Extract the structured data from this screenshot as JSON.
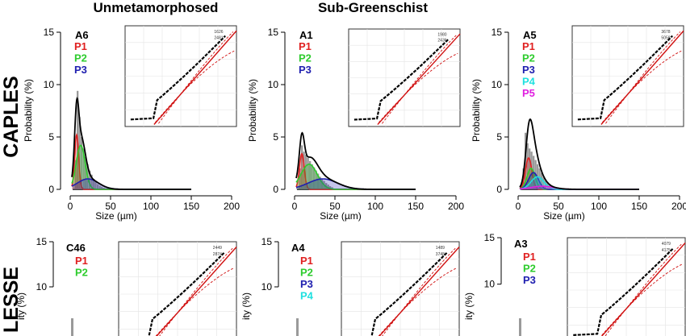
{
  "headers": {
    "left": "Unmetamorphosed",
    "right": "Sub-Greenschist",
    "row1": "CAPLES",
    "row2": "LESSE"
  },
  "colors": {
    "hist": "#9a9a9a",
    "P1": "#e02020",
    "P2": "#2ecc2e",
    "P3": "#2020b0",
    "P4": "#20e0e0",
    "P5": "#e020e0",
    "total": "#000000",
    "fit": "#d01010"
  },
  "chart_data": [
    {
      "type": "bar",
      "name": "A6",
      "sample": "A6",
      "xlabel": "Size (µm)",
      "ylabel": "Probability (%)",
      "xlim": [
        0,
        200
      ],
      "ylim": [
        0,
        15
      ],
      "xticks": [
        "0",
        "50",
        "100",
        "150",
        "200"
      ],
      "yticks": [
        "0",
        "5",
        "10",
        "15"
      ],
      "legend": [
        "P1",
        "P2",
        "P3"
      ],
      "inset_labels": [
        "1626",
        "2481"
      ],
      "components": [
        {
          "name": "P1",
          "mu": 8,
          "sigma": 2.5,
          "peak": 5.2
        },
        {
          "name": "P2",
          "mu": 13,
          "sigma": 5.5,
          "peak": 4.2
        },
        {
          "name": "P3",
          "mu": 22,
          "sigma": 13,
          "peak": 1.0
        }
      ],
      "histogram": [
        0.05,
        2.8,
        9.4,
        6.9,
        5.0,
        3.9,
        3.1,
        2.4,
        1.8,
        1.4,
        1.0,
        0.7,
        0.5,
        0.35,
        0.25,
        0.15,
        0.1
      ]
    },
    {
      "type": "bar",
      "name": "A1",
      "sample": "A1",
      "xlabel": "Size (µm)",
      "ylabel": "Probability (%)",
      "xlim": [
        0,
        200
      ],
      "ylim": [
        0,
        15
      ],
      "xticks": [
        "0",
        "50",
        "100",
        "150",
        "200"
      ],
      "yticks": [
        "0",
        "5",
        "10",
        "15"
      ],
      "legend": [
        "P1",
        "P2",
        "P3"
      ],
      "inset_labels": [
        "1980",
        "2436"
      ],
      "components": [
        {
          "name": "P1",
          "mu": 9,
          "sigma": 3,
          "peak": 3.4
        },
        {
          "name": "P2",
          "mu": 18,
          "sigma": 10,
          "peak": 2.4
        },
        {
          "name": "P3",
          "mu": 35,
          "sigma": 18,
          "peak": 1.0
        }
      ],
      "histogram": [
        0.05,
        2.0,
        4.2,
        3.6,
        3.3,
        3.0,
        2.7,
        2.4,
        2.1,
        1.8,
        1.5,
        1.2,
        1.0,
        0.8,
        0.6,
        0.45,
        0.3,
        0.2
      ]
    },
    {
      "type": "bar",
      "name": "A5",
      "sample": "A5",
      "xlabel": "Size (µm)",
      "ylabel": "Probability (%)",
      "xlim": [
        0,
        200
      ],
      "ylim": [
        0,
        15
      ],
      "xticks": [
        "0",
        "50",
        "100",
        "150",
        "200"
      ],
      "yticks": [
        "0",
        "5",
        "10",
        "15"
      ],
      "legend": [
        "P1",
        "P2",
        "P3",
        "P4",
        "P5"
      ],
      "inset_labels": [
        "3678",
        "5058"
      ],
      "components": [
        {
          "name": "P1",
          "mu": 13,
          "sigma": 4,
          "peak": 3.0
        },
        {
          "name": "P2",
          "mu": 16,
          "sigma": 5,
          "peak": 2.0
        },
        {
          "name": "P3",
          "mu": 19,
          "sigma": 6,
          "peak": 1.6
        },
        {
          "name": "P4",
          "mu": 24,
          "sigma": 8,
          "peak": 1.2
        },
        {
          "name": "P5",
          "mu": 30,
          "sigma": 14,
          "peak": 0.3
        }
      ],
      "histogram": [
        0.05,
        2.0,
        5.4,
        4.4,
        3.9,
        3.6,
        3.2,
        2.8,
        2.4,
        2.0,
        1.6,
        1.2,
        0.9,
        0.7,
        0.5,
        0.3,
        0.2
      ]
    },
    {
      "type": "bar",
      "name": "C46",
      "sample": "C46",
      "ylabel": "ity (%)",
      "ylim": [
        0,
        15
      ],
      "yticks": [
        "10",
        "15"
      ],
      "legend": [
        "P1",
        "P2"
      ],
      "inset_labels": [
        "2449",
        "2874"
      ]
    },
    {
      "type": "bar",
      "name": "A4",
      "sample": "A4",
      "ylabel": "ity (%)",
      "ylim": [
        0,
        15
      ],
      "yticks": [
        "10",
        "15"
      ],
      "legend": [
        "P1",
        "P2",
        "P3",
        "P4"
      ],
      "inset_labels": [
        "1489",
        "3748"
      ]
    },
    {
      "type": "bar",
      "name": "A3",
      "sample": "A3",
      "ylabel": "ity (%)",
      "ylim": [
        0,
        15
      ],
      "yticks": [
        "10",
        "15"
      ],
      "legend": [
        "P1",
        "P2",
        "P3"
      ],
      "inset_labels": [
        "4079",
        "4175"
      ]
    }
  ]
}
